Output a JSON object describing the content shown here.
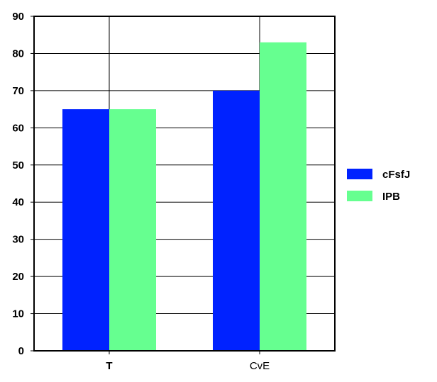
{
  "chart_data": {
    "type": "bar",
    "categories": [
      "T",
      "CvE"
    ],
    "series": [
      {
        "name": "cFsfJ",
        "values": [
          65,
          70
        ],
        "color": "#0022ff"
      },
      {
        "name": "IPB",
        "values": [
          65,
          83
        ],
        "color": "#66ff90"
      }
    ],
    "title": "",
    "xlabel": "",
    "ylabel": "",
    "ylim": [
      0,
      90
    ],
    "yticks": [
      0,
      10,
      20,
      30,
      40,
      50,
      60,
      70,
      80,
      90
    ],
    "grid": true,
    "legend_position": "right"
  }
}
